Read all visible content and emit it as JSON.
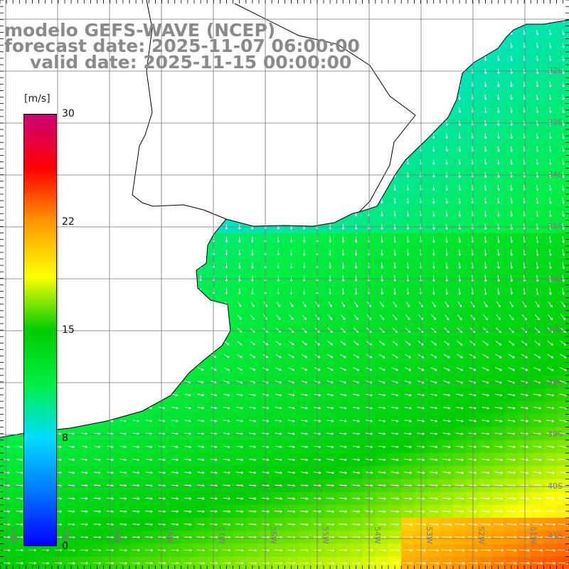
{
  "header": {
    "model": "modelo GEFS-WAVE (NCEP)",
    "forecast": "forecast date: 2025-11-07 06:00:00",
    "valid": "valid date: 2025-11-15 00:00:00"
  },
  "colorbar": {
    "unit": "[m/s]",
    "min": 0,
    "max": 30,
    "ticks": [
      "30",
      "22",
      "15",
      "8",
      "0"
    ],
    "colors": [
      "#0000ff",
      "#0077ff",
      "#00ddff",
      "#00ee44",
      "#00cc00",
      "#ffff00",
      "#ff9900",
      "#ff0000",
      "#cc0077"
    ]
  },
  "map": {
    "lat_labels": [
      "32S",
      "33S",
      "34S",
      "35S",
      "36S",
      "37S",
      "38S",
      "39S",
      "40S",
      "41S"
    ],
    "lon_labels": [
      "61W",
      "60W",
      "59W",
      "58W",
      "57W",
      "56W",
      "55W",
      "54W",
      "53W",
      "52W",
      "51W"
    ],
    "land_color": "#ffffff",
    "coast_color": "#000000",
    "grid_color": "#777777",
    "arrow_color": "#ffffff"
  }
}
